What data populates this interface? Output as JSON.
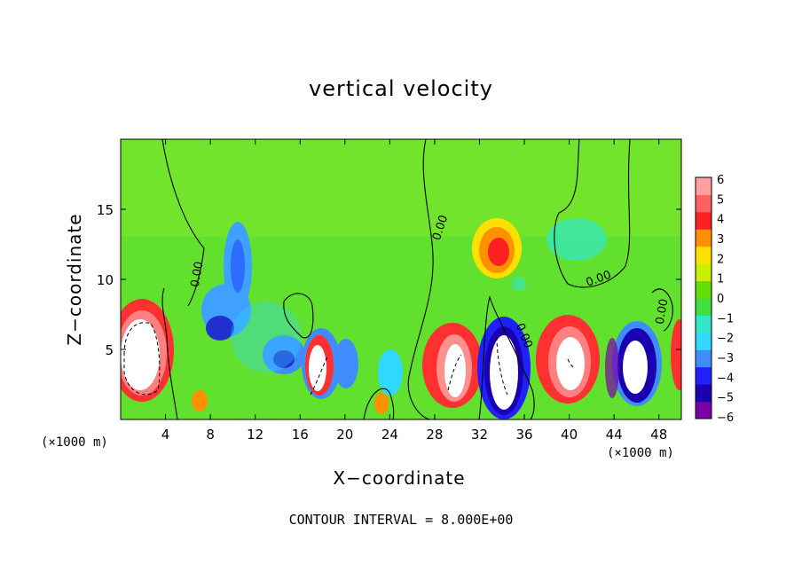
{
  "chart_data": {
    "type": "heatmap",
    "title": "vertical velocity",
    "xlabel": "X−coordinate",
    "ylabel": "Z−coordinate",
    "x_unit_label": "(×1000 m)",
    "x_ticks": [
      4,
      8,
      12,
      16,
      20,
      24,
      28,
      32,
      36,
      40,
      44,
      48
    ],
    "y_ticks": [
      5,
      10,
      15
    ],
    "xlim": [
      0,
      50
    ],
    "ylim": [
      0,
      20
    ],
    "colorbar": {
      "ticks": [
        "6",
        "5",
        "4",
        "3",
        "2",
        "1",
        "0",
        "−1",
        "−2",
        "−3",
        "−4",
        "−5",
        "−6"
      ],
      "range": [
        -6,
        6
      ],
      "colors": [
        "#7a00a8",
        "#1a00b0",
        "#2020ff",
        "#3f8cff",
        "#30d8ff",
        "#30e8c8",
        "#40e040",
        "#60e000",
        "#c8f000",
        "#ffe000",
        "#ff9000",
        "#ff2020",
        "#ff6060",
        "#ffa0a0"
      ]
    },
    "contour_labels": [
      "0.00",
      "0.00",
      "0.00",
      "0.00",
      "0.00"
    ],
    "contour_interval_text": "CONTOUR INTERVAL = 8.000E+00",
    "features": [
      {
        "x": 2.5,
        "z": 4.5,
        "w": 4.0,
        "sign": "positive",
        "peak": 14
      },
      {
        "x": 10.5,
        "z": 8.5,
        "w": -4.5,
        "sign": "negative"
      },
      {
        "x": 14.5,
        "z": 4.5,
        "w": -4.0,
        "sign": "negative"
      },
      {
        "x": 18.0,
        "z": 3.0,
        "w": 10.0,
        "sign": "positive",
        "peak": 10
      },
      {
        "x": 29.8,
        "z": 3.5,
        "w": 10.0,
        "sign": "positive",
        "peak": 12
      },
      {
        "x": 33.7,
        "z": 3.5,
        "w": -10.0,
        "sign": "negative",
        "peak": -14
      },
      {
        "x": 33.5,
        "z": 12.0,
        "w": 4.5,
        "sign": "positive"
      },
      {
        "x": 40.5,
        "z": 4.5,
        "w": 10.0,
        "sign": "positive",
        "peak": 12
      },
      {
        "x": 45.8,
        "z": 4.0,
        "w": -10.0,
        "sign": "negative",
        "peak": -12
      },
      {
        "x": 49.5,
        "z": 4.5,
        "w": 8.0,
        "sign": "positive"
      }
    ]
  }
}
